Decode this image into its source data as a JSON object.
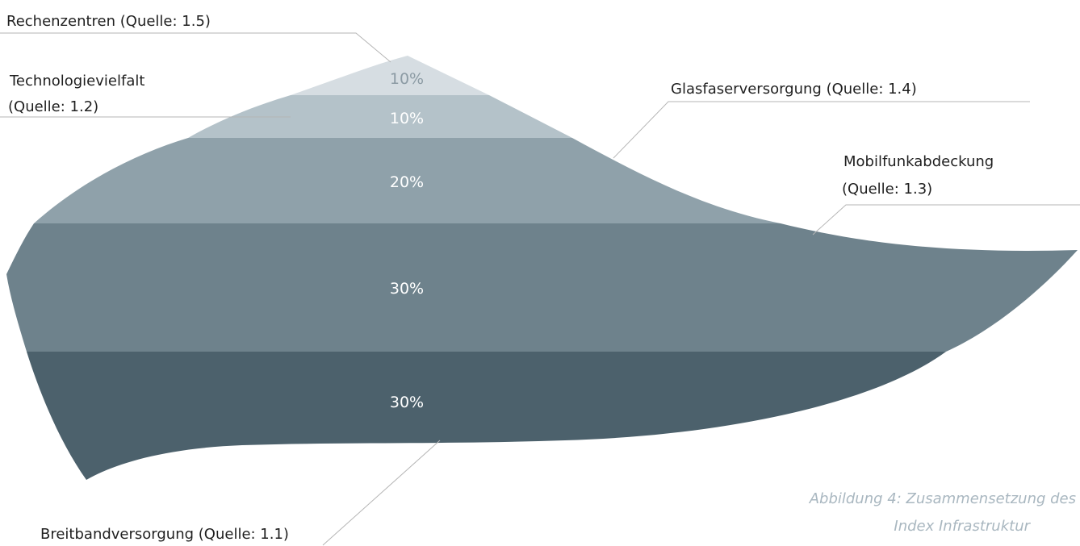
{
  "chart_data": {
    "type": "pie",
    "title": "",
    "segments": [
      {
        "name": "Breitbandversorgung (Quelle: 1.1)",
        "value": 30,
        "value_label": "30%",
        "color": "#4c616c",
        "label_color": "#ffffff",
        "label_lines": [
          "Breitbandversorgung (Quelle: 1.1)"
        ]
      },
      {
        "name": "Mobilfunkabdeckung (Quelle: 1.3)",
        "value": 30,
        "value_label": "30%",
        "color": "#6e828c",
        "label_color": "#ffffff",
        "label_lines": [
          "Mobilfunkabdeckung",
          "(Quelle: 1.3)"
        ]
      },
      {
        "name": "Glasfaserversorgung (Quelle: 1.4)",
        "value": 20,
        "value_label": "20%",
        "color": "#8fa1aa",
        "label_color": "#ffffff",
        "label_lines": [
          "Glasfaserversorgung (Quelle: 1.4)"
        ]
      },
      {
        "name": "Technologievielfalt (Quelle: 1.2)",
        "value": 10,
        "value_label": "10%",
        "color": "#b4c2c9",
        "label_color": "#ffffff",
        "label_lines": [
          "Technologievielfalt",
          "(Quelle: 1.2)"
        ]
      },
      {
        "name": "Rechenzentren (Quelle: 1.5)",
        "value": 10,
        "value_label": "10%",
        "color": "#d6dde2",
        "label_color": "#8c9ba4",
        "label_lines": [
          "Rechenzentren (Quelle: 1.5)"
        ]
      }
    ]
  },
  "caption": {
    "line1": "Abbildung 4: Zusammensetzung des",
    "line2": "Index Infrastruktur"
  }
}
